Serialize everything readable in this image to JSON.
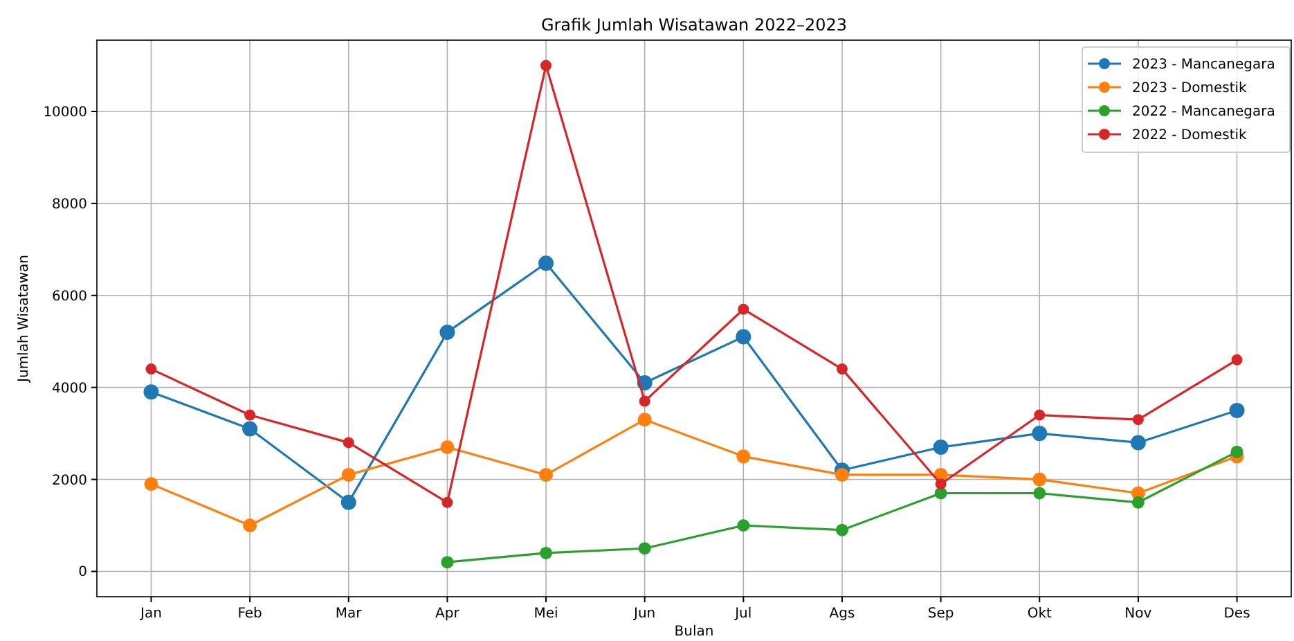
{
  "chart_data": {
    "type": "line",
    "title": "Grafik Jumlah Wisatawan 2022–2023",
    "xlabel": "Bulan",
    "ylabel": "Jumlah Wisatawan",
    "categories": [
      "Jan",
      "Feb",
      "Mar",
      "Apr",
      "Mei",
      "Jun",
      "Jul",
      "Ags",
      "Sep",
      "Okt",
      "Nov",
      "Des"
    ],
    "series": [
      {
        "name": "2023 - Mancanegara",
        "color": "#1f77b4",
        "values": [
          3900,
          3100,
          1500,
          5200,
          6700,
          4100,
          5100,
          2200,
          2700,
          3000,
          2800,
          3500
        ]
      },
      {
        "name": "2023 - Domestik",
        "color": "#ff7f0e",
        "values": [
          1900,
          1000,
          2100,
          2700,
          2100,
          3300,
          2500,
          2100,
          2100,
          2000,
          1700,
          2500
        ]
      },
      {
        "name": "2022 - Mancanegara",
        "color": "#2ca02c",
        "values": [
          null,
          null,
          null,
          200,
          400,
          500,
          1000,
          900,
          1700,
          1700,
          1500,
          2600
        ]
      },
      {
        "name": "2022 - Domestik",
        "color": "#d62728",
        "values": [
          4400,
          3400,
          2800,
          1500,
          11000,
          3700,
          5700,
          4400,
          1900,
          3400,
          3300,
          4600
        ]
      }
    ],
    "ylim": [
      -550,
      11550
    ],
    "yticks": [
      0,
      2000,
      4000,
      6000,
      8000,
      10000
    ],
    "grid": true,
    "legend": "top right",
    "marker": "circle",
    "line_style": "solid"
  }
}
